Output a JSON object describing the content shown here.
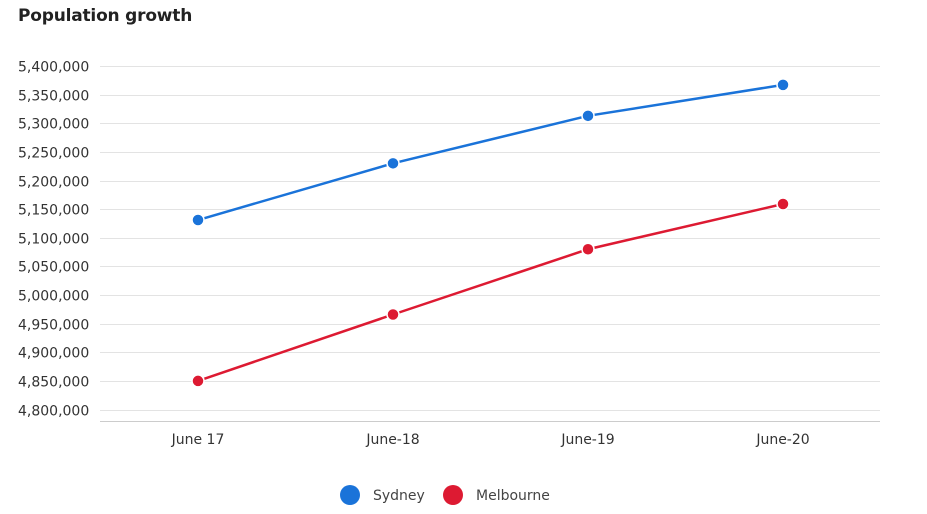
{
  "chart_data": {
    "type": "line",
    "title": "Population growth",
    "categories": [
      "June 17",
      "June-18",
      "June-19",
      "June-20"
    ],
    "yticks": [
      4800000,
      4850000,
      4900000,
      4950000,
      5000000,
      5050000,
      5100000,
      5150000,
      5200000,
      5250000,
      5300000,
      5350000,
      5400000
    ],
    "ylim": [
      4780000,
      5400000
    ],
    "grid": true,
    "legend_position": "bottom",
    "series": [
      {
        "name": "Sydney",
        "color": "#1a73d9",
        "values": [
          5131000,
          5230000,
          5313000,
          5367000
        ]
      },
      {
        "name": "Melbourne",
        "color": "#dd1a32",
        "values": [
          4850000,
          4966000,
          5080000,
          5159000
        ]
      }
    ]
  }
}
